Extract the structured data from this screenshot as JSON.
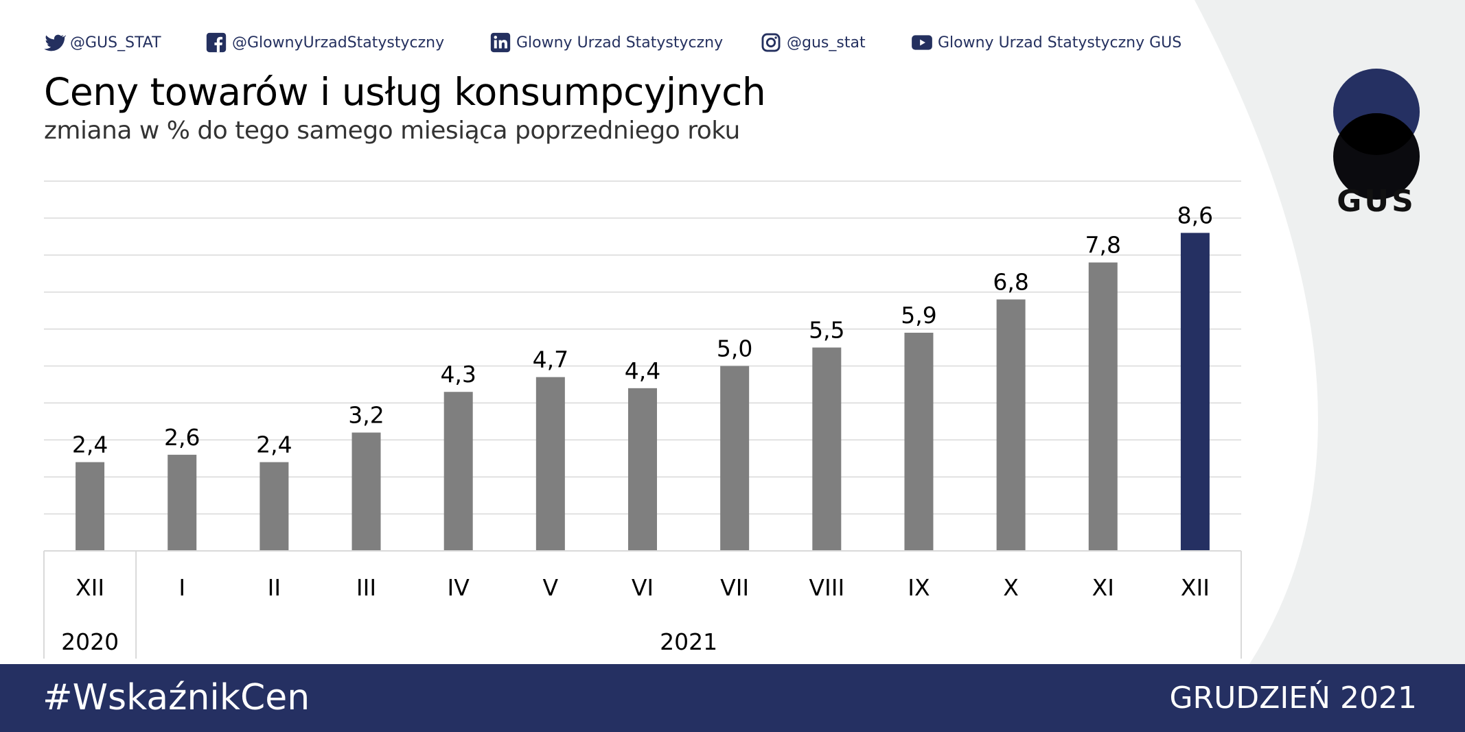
{
  "social": [
    {
      "icon": "twitter-icon",
      "label": "@GUS_STAT"
    },
    {
      "icon": "facebook-icon",
      "label": "@GlownyUrzadStatystyczny"
    },
    {
      "icon": "linkedin-icon",
      "label": "Glowny Urzad Statystyczny"
    },
    {
      "icon": "instagram-icon",
      "label": "@gus_stat"
    },
    {
      "icon": "youtube-icon",
      "label": "Glowny Urzad Statystyczny GUS"
    }
  ],
  "logo": {
    "text": "GUS",
    "colors": {
      "top": "#b6c938",
      "bottom": "#253062",
      "overlap": "#0b0b0f"
    }
  },
  "footer": {
    "hashtag": "#WskaźnikCen",
    "period": "GRUDZIEŃ 2021"
  },
  "colors": {
    "navy": "#253062",
    "bar": "#7f7f7f",
    "highlight": "#253062",
    "background_shape": "#eef0f0"
  },
  "chart_data": {
    "type": "bar",
    "title": "Ceny towarów i usług konsumpcyjnych",
    "subtitle": "zmiana w % do tego samego miesiąca poprzedniego roku",
    "categories": [
      "XII",
      "I",
      "II",
      "III",
      "IV",
      "V",
      "VI",
      "VII",
      "VIII",
      "IX",
      "X",
      "XI",
      "XII"
    ],
    "values": [
      2.4,
      2.6,
      2.4,
      3.2,
      4.3,
      4.7,
      4.4,
      5.0,
      5.5,
      5.9,
      6.8,
      7.8,
      8.6
    ],
    "data_labels": [
      "2,4",
      "2,6",
      "2,4",
      "3,2",
      "4,3",
      "4,7",
      "4,4",
      "5,0",
      "5,5",
      "5,9",
      "6,8",
      "7,8",
      "8,6"
    ],
    "highlight_index": 12,
    "groups": [
      {
        "label": "2020",
        "count": 1
      },
      {
        "label": "2021",
        "count": 12
      }
    ],
    "ylim": [
      0,
      10
    ],
    "grid": true,
    "xlabel": "",
    "ylabel": ""
  }
}
